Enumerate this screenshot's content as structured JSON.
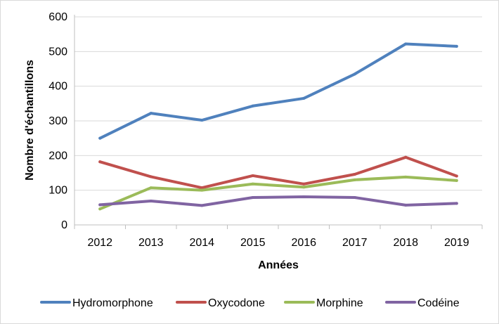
{
  "chart_data": {
    "type": "line",
    "title": "",
    "xlabel": "Années",
    "ylabel": "Nombre d'échantillons",
    "ylim": [
      0,
      600
    ],
    "yticks": [
      0,
      100,
      200,
      300,
      400,
      500,
      600
    ],
    "grid": true,
    "legend_position": "bottom",
    "categories": [
      "2012",
      "2013",
      "2014",
      "2015",
      "2016",
      "2017",
      "2018",
      "2019"
    ],
    "series": [
      {
        "name": "Hydromorphone",
        "color": "#4f81bd",
        "values": [
          250,
          322,
          302,
          343,
          365,
          435,
          522,
          515
        ]
      },
      {
        "name": "Oxycodone",
        "color": "#c0504d",
        "values": [
          182,
          139,
          107,
          142,
          118,
          146,
          195,
          141
        ]
      },
      {
        "name": "Morphine",
        "color": "#9bbb59",
        "values": [
          46,
          107,
          100,
          118,
          109,
          130,
          138,
          128
        ]
      },
      {
        "name": "Codéine",
        "color": "#8064a2",
        "values": [
          58,
          69,
          56,
          79,
          81,
          79,
          57,
          62
        ]
      }
    ]
  }
}
